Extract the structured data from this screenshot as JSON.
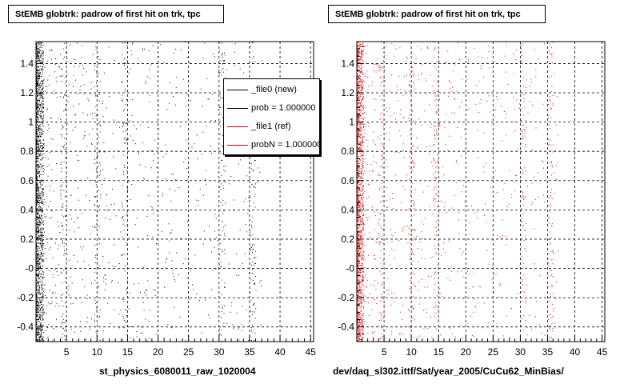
{
  "chart_data": [
    {
      "type": "scatter",
      "title": "StEMB globtrk: padrow of first hit on trk, tpc",
      "xlabel": "st_physics_6080011_raw_1020004",
      "ylabel": "",
      "xlim": [
        0,
        45.5
      ],
      "ylim": [
        -0.5,
        1.55
      ],
      "xticks": [
        5,
        10,
        15,
        20,
        25,
        30,
        35,
        40,
        45
      ],
      "xtick_labels": [
        "5",
        "10",
        "15",
        "20",
        "25",
        "30",
        "35",
        "40",
        "45"
      ],
      "yticks": [
        -0.4,
        -0.2,
        0,
        0.2,
        0.4,
        0.6,
        0.8,
        1,
        1.2,
        1.4
      ],
      "ytick_labels": [
        "-0.4",
        "-0.2",
        "-0",
        "0.2",
        "0.4",
        "0.6",
        "0.8",
        "1",
        "1.2",
        "1.4"
      ],
      "grid": true,
      "series": [
        {
          "color": "#000000",
          "dense_band": [
            0,
            1.2
          ],
          "column_bands": [
            [
              4,
              5
            ],
            [
              9.5,
              10.5
            ],
            [
              14,
              15
            ],
            [
              30,
              31
            ],
            [
              35,
              36
            ]
          ],
          "x_extent": [
            0,
            37
          ],
          "y_extent": [
            -0.5,
            1.55
          ]
        }
      ],
      "legend": {
        "placement": "top-right",
        "entries": [
          {
            "label": "_file0 (new)",
            "color": "#000000"
          },
          {
            "label": "prob = 1.000000",
            "color": "#000000"
          },
          {
            "label": "_file1 (ref)",
            "color": "#cc0000"
          },
          {
            "label": "probN = 1.000000",
            "color": "#cc0000"
          }
        ]
      }
    },
    {
      "type": "scatter",
      "title": "StEMB globtrk: padrow of first hit on trk, tpc",
      "xlabel": "dev/daq_sl302.ittf/Sat/year_2005/CuCu62_MinBias/",
      "ylabel": "",
      "xlim": [
        0,
        45.5
      ],
      "ylim": [
        -0.5,
        1.55
      ],
      "xticks": [
        5,
        10,
        15,
        20,
        25,
        30,
        35,
        40,
        45
      ],
      "xtick_labels": [
        "5",
        "10",
        "15",
        "20",
        "25",
        "30",
        "35",
        "40",
        "45"
      ],
      "yticks": [
        -0.4,
        -0.2,
        0,
        0.2,
        0.4,
        0.6,
        0.8,
        1,
        1.2,
        1.4
      ],
      "ytick_labels": [
        "-0.4",
        "-0.2",
        "-0",
        "0.2",
        "0.4",
        "0.6",
        "0.8",
        "1",
        "1.2",
        "1.4"
      ],
      "grid": true,
      "series": [
        {
          "color": "#dd0000",
          "dense_band": [
            0,
            1.2
          ],
          "column_bands": [
            [
              4,
              5
            ],
            [
              9.5,
              10.5
            ],
            [
              14,
              15
            ],
            [
              30,
              31
            ],
            [
              35,
              36
            ]
          ],
          "x_extent": [
            0,
            37
          ],
          "y_extent": [
            -0.5,
            1.55
          ]
        }
      ]
    }
  ],
  "footer": {
    "text": ""
  }
}
